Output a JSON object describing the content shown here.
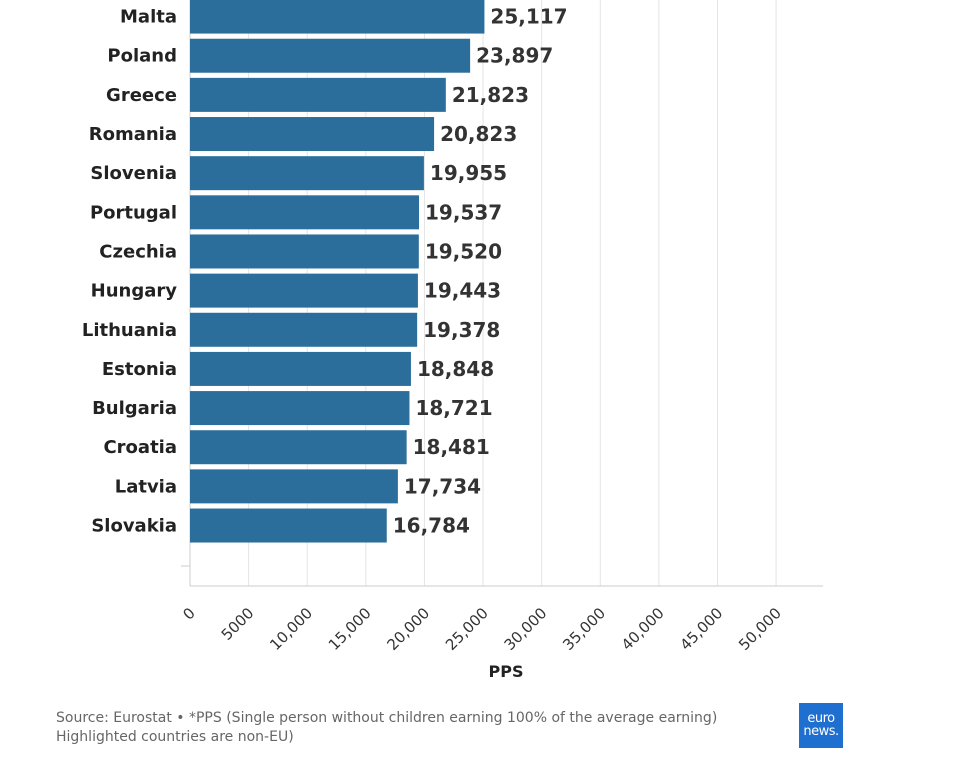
{
  "chart_data": {
    "type": "bar",
    "orientation": "horizontal",
    "categories": [
      "Malta",
      "Poland",
      "Greece",
      "Romania",
      "Slovenia",
      "Portugal",
      "Czechia",
      "Hungary",
      "Lithuania",
      "Estonia",
      "Bulgaria",
      "Croatia",
      "Latvia",
      "Slovakia"
    ],
    "values": [
      25117,
      23897,
      21823,
      20823,
      19955,
      19537,
      19520,
      19443,
      19378,
      18848,
      18721,
      18481,
      17734,
      16784
    ],
    "value_labels": [
      "25,117",
      "23,897",
      "21,823",
      "20,823",
      "19,955",
      "19,537",
      "19,520",
      "19,443",
      "19,378",
      "18,848",
      "18,721",
      "18,481",
      "17,734",
      "16,784"
    ],
    "xlabel": "PPS",
    "xlim": [
      0,
      54000
    ],
    "x_ticks": [
      0,
      5000,
      10000,
      15000,
      20000,
      25000,
      30000,
      35000,
      40000,
      45000,
      50000
    ],
    "x_tick_labels": [
      "0",
      "5000",
      "10,000",
      "15,000",
      "20,000",
      "25,000",
      "30,000",
      "35,000",
      "40,000",
      "45,000",
      "50,000"
    ],
    "bar_color": "#2c6e9b",
    "grid": true
  },
  "footer": {
    "source": "Source: Eurostat • *PPS (Single person without children earning 100% of the average earning) Highlighted countries are non-EU)"
  },
  "logo": {
    "line1": "euro",
    "line2": "news.",
    "color": "#1f6fd1"
  }
}
